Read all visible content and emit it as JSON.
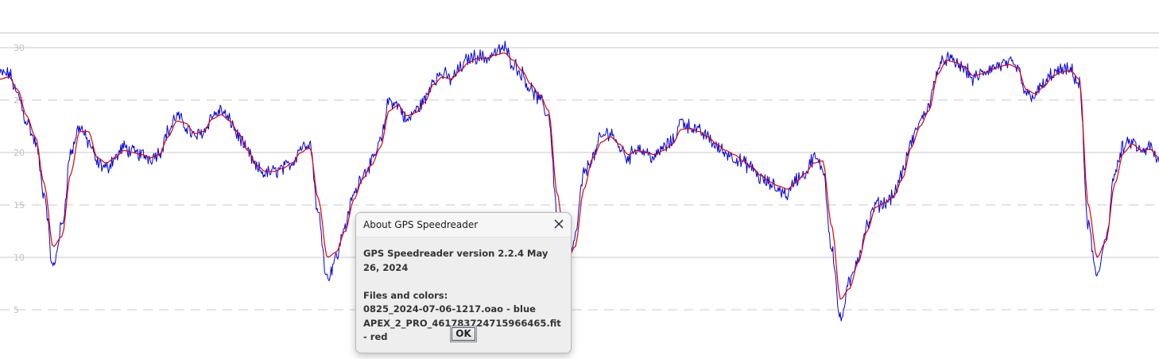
{
  "chart": {
    "colors": {
      "grid_solid": "#c8c8c8",
      "grid_dashed": "#c8c8c8",
      "tick_text": "#c0c0c0",
      "series_blue": "#0000e0",
      "series_red": "#e00000"
    }
  },
  "chart_data": {
    "type": "line",
    "title": "",
    "xlabel": "",
    "ylabel": "",
    "yticks": [
      "30",
      "25",
      "20",
      "15",
      "10",
      "5"
    ],
    "ylim": [
      3,
      33
    ],
    "grid": true,
    "series": [
      {
        "name": "0825_2024-07-06-1217.oao",
        "color": "blue",
        "keypoints": [
          [
            0,
            27.5
          ],
          [
            1,
            27.5
          ],
          [
            2,
            25.5
          ],
          [
            3,
            23
          ],
          [
            4,
            21
          ],
          [
            5,
            16
          ],
          [
            6,
            9
          ],
          [
            7,
            13
          ],
          [
            8,
            20
          ],
          [
            9,
            22.5
          ],
          [
            10,
            21
          ],
          [
            11,
            19
          ],
          [
            12,
            18.5
          ],
          [
            13,
            19.5
          ],
          [
            14,
            20.5
          ],
          [
            15,
            20
          ],
          [
            16,
            19.8
          ],
          [
            17,
            19.5
          ],
          [
            18,
            20
          ],
          [
            19,
            22
          ],
          [
            20,
            23.5
          ],
          [
            21,
            22.5
          ],
          [
            22,
            21.5
          ],
          [
            23,
            22
          ],
          [
            24,
            23.5
          ],
          [
            25,
            24
          ],
          [
            26,
            23
          ],
          [
            27,
            21.5
          ],
          [
            28,
            20
          ],
          [
            29,
            18.5
          ],
          [
            30,
            18
          ],
          [
            31,
            18.2
          ],
          [
            32,
            18.5
          ],
          [
            33,
            19
          ],
          [
            34,
            20.5
          ],
          [
            35,
            21
          ],
          [
            36,
            14
          ],
          [
            37,
            8
          ],
          [
            38,
            10
          ],
          [
            39,
            13
          ],
          [
            40,
            16
          ],
          [
            41,
            18
          ],
          [
            42,
            19
          ],
          [
            43,
            21
          ],
          [
            44,
            25
          ],
          [
            45,
            24.5
          ],
          [
            46,
            23
          ],
          [
            47,
            24
          ],
          [
            48,
            25
          ],
          [
            49,
            27
          ],
          [
            50,
            27.5
          ],
          [
            51,
            27
          ],
          [
            52,
            28
          ],
          [
            53,
            29
          ],
          [
            54,
            29.2
          ],
          [
            55,
            29
          ],
          [
            56,
            29.5
          ],
          [
            57,
            30
          ],
          [
            58,
            28.5
          ],
          [
            59,
            27.5
          ],
          [
            60,
            26
          ],
          [
            61,
            25
          ],
          [
            62,
            23.5
          ],
          [
            63,
            14
          ],
          [
            64,
            6.5
          ],
          [
            65,
            12
          ],
          [
            66,
            18
          ],
          [
            67,
            19.5
          ],
          [
            68,
            21.5
          ],
          [
            69,
            22
          ],
          [
            70,
            20.5
          ],
          [
            71,
            19.5
          ],
          [
            72,
            20.5
          ],
          [
            73,
            20
          ],
          [
            74,
            19.5
          ],
          [
            75,
            20.5
          ],
          [
            76,
            21
          ],
          [
            77,
            23
          ],
          [
            78,
            22.5
          ],
          [
            79,
            22
          ],
          [
            80,
            21.5
          ],
          [
            81,
            20.5
          ],
          [
            82,
            20
          ],
          [
            83,
            19.5
          ],
          [
            84,
            19
          ],
          [
            85,
            18.5
          ],
          [
            86,
            17.5
          ],
          [
            87,
            17
          ],
          [
            88,
            16.5
          ],
          [
            89,
            16
          ],
          [
            90,
            17.5
          ],
          [
            91,
            18
          ],
          [
            92,
            19.5
          ],
          [
            93,
            18.5
          ],
          [
            94,
            11
          ],
          [
            95,
            4
          ],
          [
            96,
            7.5
          ],
          [
            97,
            10
          ],
          [
            98,
            13
          ],
          [
            99,
            15
          ],
          [
            100,
            15.2
          ],
          [
            101,
            16
          ],
          [
            102,
            18
          ],
          [
            103,
            21
          ],
          [
            104,
            23
          ],
          [
            105,
            24.5
          ],
          [
            106,
            28
          ],
          [
            107,
            29
          ],
          [
            108,
            28.5
          ],
          [
            109,
            28
          ],
          [
            110,
            27
          ],
          [
            111,
            27.5
          ],
          [
            112,
            28
          ],
          [
            113,
            28.3
          ],
          [
            114,
            28.5
          ],
          [
            115,
            28
          ],
          [
            116,
            25.5
          ],
          [
            117,
            25.5
          ],
          [
            118,
            26.5
          ],
          [
            119,
            27.5
          ],
          [
            120,
            27.8
          ],
          [
            121,
            27.8
          ],
          [
            122,
            26.5
          ],
          [
            123,
            13
          ],
          [
            124,
            8
          ],
          [
            125,
            12
          ],
          [
            126,
            18
          ],
          [
            127,
            20.5
          ],
          [
            128,
            21
          ],
          [
            129,
            20
          ],
          [
            130,
            20.5
          ],
          [
            131,
            19
          ]
        ]
      },
      {
        "name": "APEX_2_PRO_461783724715966465.fit",
        "color": "red",
        "keypoints": [
          [
            0,
            27
          ],
          [
            1,
            27.2
          ],
          [
            2,
            26
          ],
          [
            3,
            23.5
          ],
          [
            4,
            21.5
          ],
          [
            5,
            17
          ],
          [
            6,
            11
          ],
          [
            7,
            12
          ],
          [
            8,
            18
          ],
          [
            9,
            22
          ],
          [
            10,
            22
          ],
          [
            11,
            19.5
          ],
          [
            12,
            19
          ],
          [
            13,
            19.5
          ],
          [
            14,
            20.2
          ],
          [
            15,
            20
          ],
          [
            16,
            19.8
          ],
          [
            17,
            19.5
          ],
          [
            18,
            19.8
          ],
          [
            19,
            21.5
          ],
          [
            20,
            23
          ],
          [
            21,
            22.8
          ],
          [
            22,
            21.8
          ],
          [
            23,
            22
          ],
          [
            24,
            23.2
          ],
          [
            25,
            23.6
          ],
          [
            26,
            23
          ],
          [
            27,
            21.8
          ],
          [
            28,
            20.2
          ],
          [
            29,
            18.8
          ],
          [
            30,
            18.2
          ],
          [
            31,
            18.2
          ],
          [
            32,
            18.5
          ],
          [
            33,
            19
          ],
          [
            34,
            20
          ],
          [
            35,
            20.5
          ],
          [
            36,
            15.5
          ],
          [
            37,
            10
          ],
          [
            38,
            10.5
          ],
          [
            39,
            12.5
          ],
          [
            40,
            15.5
          ],
          [
            41,
            17.5
          ],
          [
            42,
            18.8
          ],
          [
            43,
            20.5
          ],
          [
            44,
            24
          ],
          [
            45,
            24.5
          ],
          [
            46,
            23.5
          ],
          [
            47,
            23.8
          ],
          [
            48,
            24.8
          ],
          [
            49,
            26.5
          ],
          [
            50,
            27.2
          ],
          [
            51,
            27
          ],
          [
            52,
            27.8
          ],
          [
            53,
            28.6
          ],
          [
            54,
            29
          ],
          [
            55,
            29
          ],
          [
            56,
            29.3
          ],
          [
            57,
            29.5
          ],
          [
            58,
            28.8
          ],
          [
            59,
            27.8
          ],
          [
            60,
            26.5
          ],
          [
            61,
            25.5
          ],
          [
            62,
            24
          ],
          [
            63,
            16
          ],
          [
            64,
            9.5
          ],
          [
            65,
            11
          ],
          [
            66,
            16.5
          ],
          [
            67,
            19.5
          ],
          [
            68,
            21
          ],
          [
            69,
            21.5
          ],
          [
            70,
            20.8
          ],
          [
            71,
            19.8
          ],
          [
            72,
            20.2
          ],
          [
            73,
            20
          ],
          [
            74,
            19.8
          ],
          [
            75,
            20.2
          ],
          [
            76,
            20.8
          ],
          [
            77,
            22.2
          ],
          [
            78,
            22.3
          ],
          [
            79,
            22
          ],
          [
            80,
            21.5
          ],
          [
            81,
            20.8
          ],
          [
            82,
            20.2
          ],
          [
            83,
            19.8
          ],
          [
            84,
            19.2
          ],
          [
            85,
            18.6
          ],
          [
            86,
            17.8
          ],
          [
            87,
            17.2
          ],
          [
            88,
            16.8
          ],
          [
            89,
            16.5
          ],
          [
            90,
            17.2
          ],
          [
            91,
            18
          ],
          [
            92,
            19
          ],
          [
            93,
            19.2
          ],
          [
            94,
            13
          ],
          [
            95,
            6
          ],
          [
            96,
            7
          ],
          [
            97,
            9.5
          ],
          [
            98,
            12.5
          ],
          [
            99,
            14.8
          ],
          [
            100,
            15.2
          ],
          [
            101,
            15.8
          ],
          [
            102,
            17.5
          ],
          [
            103,
            20.5
          ],
          [
            104,
            22.5
          ],
          [
            105,
            24
          ],
          [
            106,
            27.5
          ],
          [
            107,
            28.8
          ],
          [
            108,
            28.6
          ],
          [
            109,
            28.2
          ],
          [
            110,
            27.3
          ],
          [
            111,
            27.5
          ],
          [
            112,
            27.9
          ],
          [
            113,
            28.2
          ],
          [
            114,
            28.4
          ],
          [
            115,
            28.1
          ],
          [
            116,
            26
          ],
          [
            117,
            25.6
          ],
          [
            118,
            26.3
          ],
          [
            119,
            27.3
          ],
          [
            120,
            27.7
          ],
          [
            121,
            27.8
          ],
          [
            122,
            27
          ],
          [
            123,
            15
          ],
          [
            124,
            10
          ],
          [
            125,
            11.5
          ],
          [
            126,
            17
          ],
          [
            127,
            20
          ],
          [
            128,
            20.8
          ],
          [
            129,
            20.2
          ],
          [
            130,
            20.3
          ],
          [
            131,
            19.5
          ]
        ]
      }
    ]
  },
  "dialog": {
    "title": "About GPS Speedreader",
    "close_icon": "close-icon",
    "version_line": "GPS Speedreader version 2.2.4 May 26, 2024",
    "files_header": "Files and colors:",
    "file1": "0825_2024-07-06-1217.oao - blue",
    "file2": "APEX_2_PRO_461783724715966465.fit - red",
    "ok_label": "OK"
  }
}
